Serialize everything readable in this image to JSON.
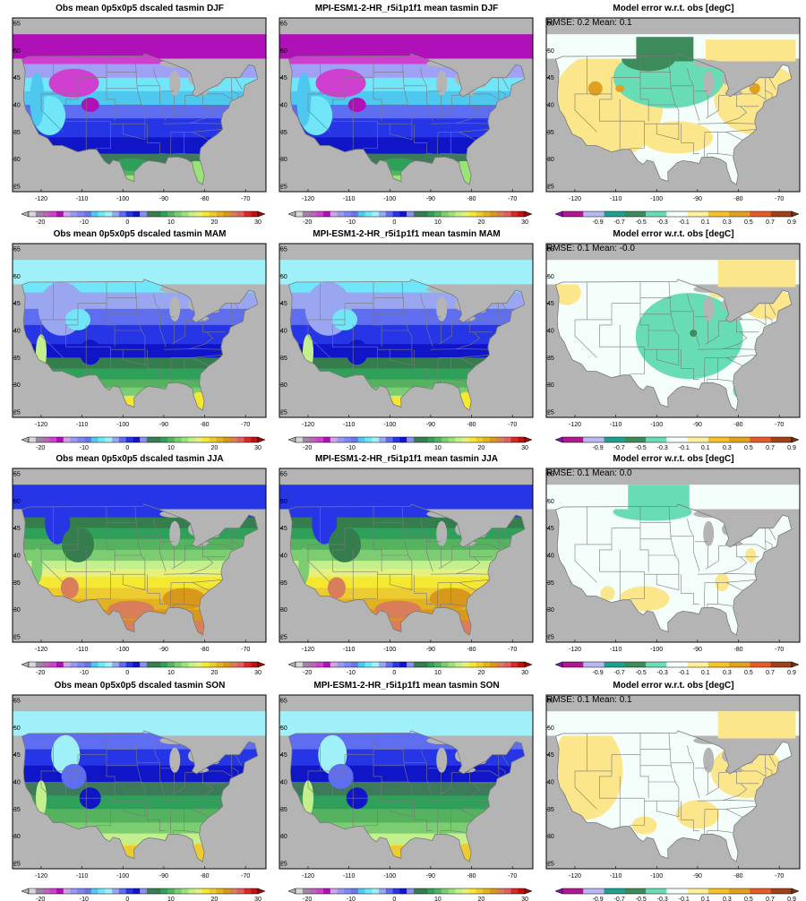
{
  "figure": {
    "rows": [
      {
        "season": "DJF",
        "obs_title": "Obs mean 0p5x0p5 dscaled tasmin DJF",
        "model_title": "MPI-ESM1-2-HR_r5i1p1f1 mean tasmin DJF",
        "err_title": "Model error w.r.t. obs [degC]",
        "stats": "RMSE: 0.2  Mean: 0.1"
      },
      {
        "season": "MAM",
        "obs_title": "Obs mean 0p5x0p5 dscaled tasmin MAM",
        "model_title": "MPI-ESM1-2-HR_r5i1p1f1 mean tasmin MAM",
        "err_title": "Model error w.r.t. obs [degC]",
        "stats": "RMSE: 0.1  Mean: -0.0"
      },
      {
        "season": "JJA",
        "obs_title": "Obs mean 0p5x0p5 dscaled tasmin JJA",
        "model_title": "MPI-ESM1-2-HR_r5i1p1f1 mean tasmin JJA",
        "err_title": "Model error w.r.t. obs [degC]",
        "stats": "RMSE: 0.1  Mean: 0.0"
      },
      {
        "season": "SON",
        "obs_title": "Obs mean 0p5x0p5 dscaled tasmin SON",
        "model_title": "MPI-ESM1-2-HR_r5i1p1f1 mean tasmin SON",
        "err_title": "Model error w.r.t. obs [degC]",
        "stats": "RMSE: 0.1  Mean: 0.1"
      }
    ],
    "lat_ticks": [
      "25",
      "30",
      "35",
      "40",
      "45",
      "50",
      "55"
    ],
    "lon_ticks": [
      "-120",
      "-110",
      "-100",
      "-90",
      "-80",
      "-70"
    ],
    "temp_colorbar": {
      "labels": [
        "-20",
        "-10",
        "0",
        "10",
        "20",
        "30"
      ],
      "colors": [
        "#b0b0b0",
        "#d8d8d8",
        "#9f86a6",
        "#b868b4",
        "#d040d0",
        "#b010b8",
        "#c8a8e0",
        "#9b97f0",
        "#7d86f2",
        "#6b75e6",
        "#4fc8f0",
        "#70e6f8",
        "#a0f0fa",
        "#9aa6f0",
        "#5f6df0",
        "#2636e6",
        "#1016c8",
        "#8d8df4",
        "#3c7a5a",
        "#357d4c",
        "#2fa05a",
        "#55b35f",
        "#7ccd72",
        "#9be378",
        "#c3f08c",
        "#e6f07c",
        "#f5e830",
        "#eccc30",
        "#e2b220",
        "#d8981c",
        "#d87e5a",
        "#e06060",
        "#d82828",
        "#c01010",
        "#a00808"
      ]
    },
    "error_colorbar": {
      "labels": [
        "-0.9",
        "-0.7",
        "-0.5",
        "-0.3",
        "-0.1",
        "0.1",
        "0.3",
        "0.5",
        "0.7",
        "0.9"
      ],
      "colors": [
        "#8a10c0",
        "#b01890",
        "#b8b8f0",
        "#1ea090",
        "#3d8a5a",
        "#68dcb4",
        "#f4fffc",
        "#fff0a0",
        "#f6c22a",
        "#e2a020",
        "#e45a28",
        "#a04018",
        "#6a3a14"
      ]
    },
    "map_colors": {
      "ocean": "#b4b4b4",
      "land_ocean_cold": "#b9a4c0",
      "temp_bands_djf": [
        "#b010b8",
        "#d040d0",
        "#a0a0f4",
        "#70e6f8",
        "#4fc8f0",
        "#5f6df0",
        "#2636e6",
        "#1016c8",
        "#3c7a5a",
        "#55b35f",
        "#9be378"
      ],
      "temp_bands_mam": [
        "#a0f0fa",
        "#70e6f8",
        "#9aa6f0",
        "#5f6df0",
        "#2636e6",
        "#1016c8",
        "#357d4c",
        "#2fa05a",
        "#55b35f",
        "#7ccd72",
        "#c3f08c",
        "#f5e830"
      ],
      "temp_bands_jja": [
        "#2636e6",
        "#357d4c",
        "#2fa05a",
        "#55b35f",
        "#7ccd72",
        "#c3f08c",
        "#e6f07c",
        "#f5e830",
        "#eccc30",
        "#e2b220",
        "#d8981c",
        "#d87e5a"
      ],
      "temp_bands_son": [
        "#a0f0fa",
        "#5f6df0",
        "#2636e6",
        "#1016c8",
        "#3c7a5a",
        "#2fa05a",
        "#55b35f",
        "#7ccd72",
        "#c3f08c",
        "#f5e830",
        "#eccc30"
      ],
      "err_white": "#f4fffc",
      "err_teal": "#68dcb4",
      "err_darkgreen": "#3d8a5a",
      "err_yellow": "#fbe68c",
      "err_orange": "#e2a020",
      "borders": "#7a7a7a"
    }
  }
}
